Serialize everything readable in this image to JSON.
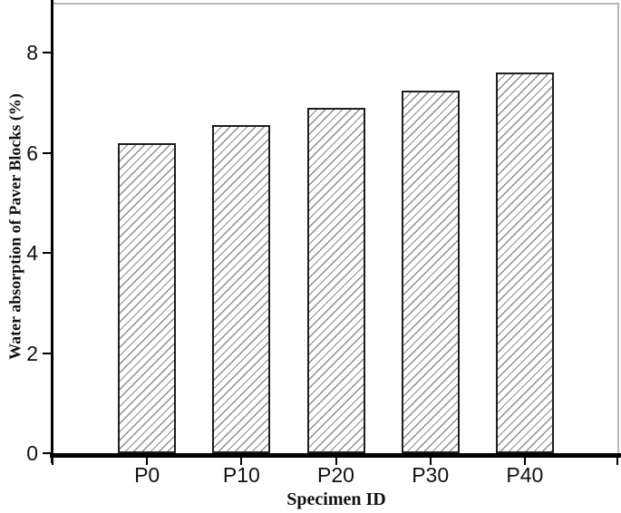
{
  "chart_data": {
    "type": "bar",
    "title": "",
    "categories": [
      "P0",
      "P10",
      "P20",
      "P30",
      "P40"
    ],
    "values": [
      6.2,
      6.55,
      6.9,
      7.25,
      7.6
    ],
    "xlabel": "Specimen ID",
    "ylabel": "Water absorption of Paver Blocks (%)",
    "ylim": [
      0,
      9
    ],
    "yticks": [
      0,
      2,
      4,
      6,
      8
    ],
    "ytick_labels": [
      "0",
      "2",
      "4",
      "6",
      "8"
    ],
    "grid": false,
    "legend": "none",
    "bar_style": "diagonal-hatch",
    "colors": {
      "hatch": "#8d8d8d",
      "bar_border": "#1e1e1e",
      "bar_fill": "#ffffff",
      "axis": "#000000",
      "frame": "#b5b5b5",
      "text": "#111111",
      "background": "#ffffff"
    }
  }
}
